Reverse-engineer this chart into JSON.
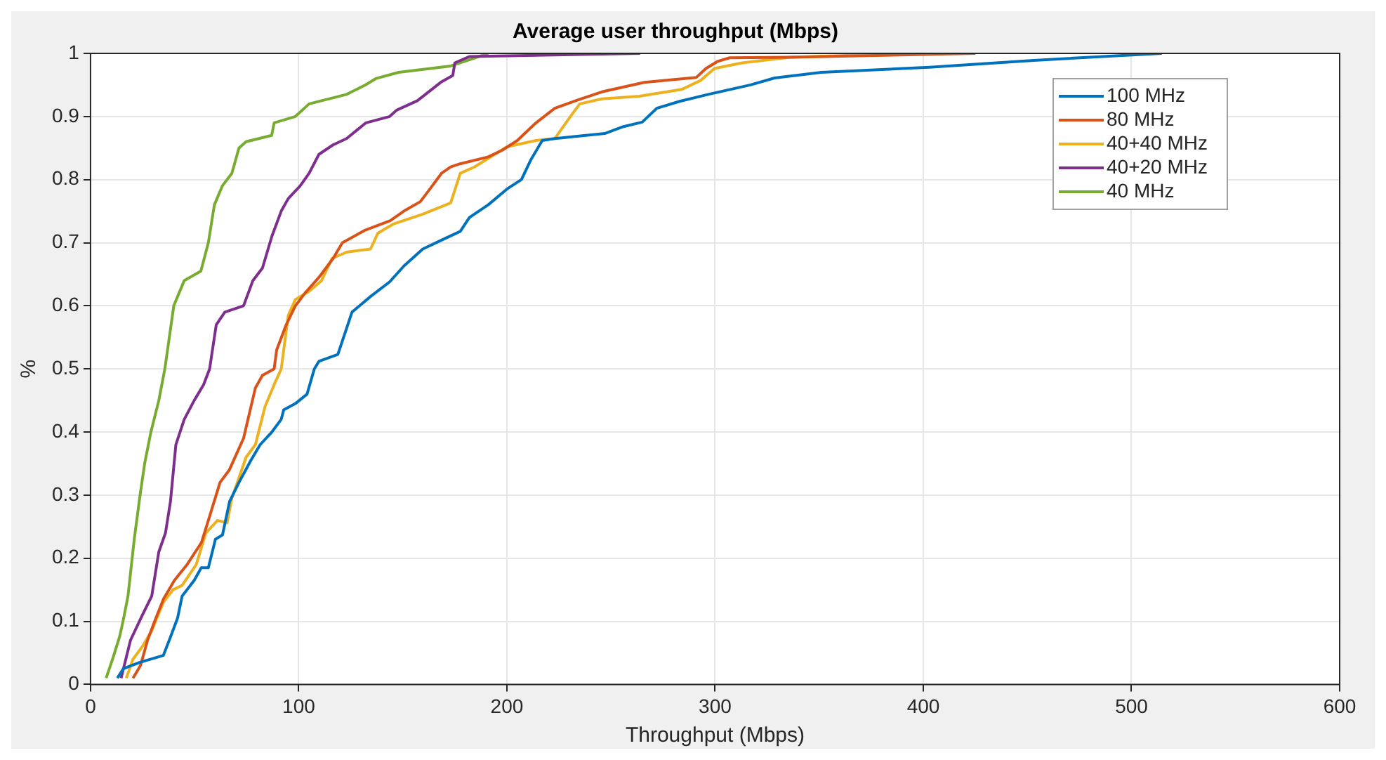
{
  "chart_data": {
    "type": "line",
    "title": "Average user throughput (Mbps)",
    "xlabel": "Throughput (Mbps)",
    "ylabel": "%",
    "xlim": [
      0,
      600
    ],
    "xticks": [
      0,
      100,
      200,
      300,
      400,
      500,
      600
    ],
    "ylim": [
      0,
      1
    ],
    "yticks": [
      0,
      0.1,
      0.2,
      0.3,
      0.4,
      0.5,
      0.6,
      0.7,
      0.8,
      0.9,
      1
    ],
    "grid": true,
    "legend": "top right",
    "marker": "none",
    "line_style": "solid",
    "series": [
      {
        "name": "100 MHz",
        "color": "#0072bd",
        "x": [
          12.9,
          15.8,
          23.8,
          35,
          38.4,
          41.8,
          44,
          49.8,
          53.2,
          56.6,
          60,
          63.4,
          66.8,
          71.3,
          77,
          81.5,
          87.1,
          91.6,
          92.8,
          98.4,
          104,
          107.5,
          109.7,
          118.8,
          125.6,
          134.6,
          143.7,
          150.5,
          159.6,
          168.6,
          177.6,
          182,
          191,
          200,
          207,
          211.6,
          217,
          223,
          247,
          256,
          265,
          272,
          283,
          296.7,
          317,
          328.6,
          351,
          403,
          453,
          514.6
        ],
        "values": [
          0.01,
          0.025,
          0.035,
          0.046,
          0.075,
          0.105,
          0.14,
          0.165,
          0.185,
          0.185,
          0.23,
          0.237,
          0.29,
          0.32,
          0.355,
          0.38,
          0.4,
          0.42,
          0.435,
          0.445,
          0.46,
          0.5,
          0.512,
          0.523,
          0.59,
          0.615,
          0.638,
          0.663,
          0.69,
          0.704,
          0.718,
          0.74,
          0.76,
          0.785,
          0.8,
          0.832,
          0.862,
          0.865,
          0.873,
          0.884,
          0.891,
          0.913,
          0.924,
          0.935,
          0.95,
          0.961,
          0.97,
          0.978,
          0.989,
          1.0
        ]
      },
      {
        "name": "80 MHz",
        "color": "#d95319",
        "x": [
          20.4,
          24,
          27.4,
          30.8,
          35,
          40.3,
          46.4,
          53.3,
          56.6,
          62.2,
          66.7,
          73.5,
          79.2,
          82.6,
          88.2,
          89.4,
          94,
          98.4,
          103,
          109.7,
          116.5,
          121,
          132,
          144,
          150.5,
          158.4,
          163,
          168.6,
          173,
          177.5,
          191,
          198,
          205,
          214,
          223,
          234,
          245.6,
          266,
          291,
          295.6,
          301,
          307,
          336,
          425
        ],
        "values": [
          0.01,
          0.03,
          0.07,
          0.1,
          0.135,
          0.165,
          0.19,
          0.225,
          0.26,
          0.32,
          0.34,
          0.39,
          0.47,
          0.49,
          0.5,
          0.53,
          0.57,
          0.6,
          0.62,
          0.645,
          0.675,
          0.7,
          0.72,
          0.735,
          0.75,
          0.765,
          0.785,
          0.81,
          0.82,
          0.825,
          0.836,
          0.847,
          0.862,
          0.89,
          0.913,
          0.926,
          0.939,
          0.954,
          0.962,
          0.976,
          0.987,
          0.993,
          0.994,
          1.0
        ]
      },
      {
        "name": "40+40 MHz",
        "color": "#edb120",
        "x": [
          17.2,
          20.4,
          24.9,
          29.4,
          35,
          39.6,
          44,
          50.8,
          55.4,
          61,
          65.6,
          67.9,
          74.7,
          79.2,
          83.8,
          88.2,
          91.6,
          95,
          98.4,
          105,
          111,
          116,
          123,
          134.5,
          138,
          145.7,
          159.4,
          173,
          177.6,
          184.4,
          200,
          214,
          223,
          230.5,
          235,
          245.6,
          263.6,
          284,
          293,
          299.7,
          313,
          336,
          395
        ],
        "values": [
          0.01,
          0.04,
          0.06,
          0.085,
          0.13,
          0.15,
          0.157,
          0.19,
          0.24,
          0.26,
          0.256,
          0.295,
          0.36,
          0.38,
          0.44,
          0.475,
          0.5,
          0.585,
          0.61,
          0.623,
          0.64,
          0.675,
          0.685,
          0.69,
          0.715,
          0.73,
          0.745,
          0.763,
          0.81,
          0.82,
          0.852,
          0.862,
          0.865,
          0.9,
          0.92,
          0.928,
          0.932,
          0.943,
          0.957,
          0.976,
          0.985,
          0.994,
          1.0
        ]
      },
      {
        "name": "40+20 MHz",
        "color": "#7e2f8e",
        "x": [
          14.7,
          19.2,
          24.9,
          29.4,
          32.8,
          36,
          38.4,
          41,
          45,
          49.8,
          54.3,
          57.2,
          60.4,
          64.5,
          73.5,
          78,
          82.6,
          87.1,
          91.6,
          95,
          100.7,
          105,
          109.7,
          116.5,
          123,
          132.3,
          143.7,
          147,
          157,
          168.6,
          174,
          175,
          182,
          264
        ],
        "values": [
          0.01,
          0.07,
          0.11,
          0.14,
          0.21,
          0.24,
          0.29,
          0.38,
          0.42,
          0.45,
          0.475,
          0.5,
          0.57,
          0.59,
          0.6,
          0.64,
          0.66,
          0.71,
          0.75,
          0.77,
          0.79,
          0.81,
          0.84,
          0.855,
          0.865,
          0.89,
          0.9,
          0.91,
          0.925,
          0.955,
          0.965,
          0.985,
          0.995,
          1.0
        ]
      },
      {
        "name": "40 MHz",
        "color": "#77ac30",
        "x": [
          7.5,
          10.6,
          14,
          15.6,
          18,
          21,
          23.8,
          26,
          29,
          32.8,
          35.7,
          40,
          45,
          53,
          56.6,
          59.5,
          63.3,
          67.9,
          71.3,
          74.7,
          87,
          88.2,
          98.4,
          105,
          123,
          132,
          137,
          148,
          173,
          182,
          191
        ],
        "values": [
          0.01,
          0.04,
          0.076,
          0.1,
          0.14,
          0.23,
          0.3,
          0.35,
          0.4,
          0.45,
          0.5,
          0.6,
          0.64,
          0.655,
          0.7,
          0.76,
          0.79,
          0.81,
          0.85,
          0.86,
          0.87,
          0.89,
          0.9,
          0.92,
          0.935,
          0.95,
          0.96,
          0.97,
          0.98,
          0.99,
          1.0
        ]
      }
    ]
  }
}
